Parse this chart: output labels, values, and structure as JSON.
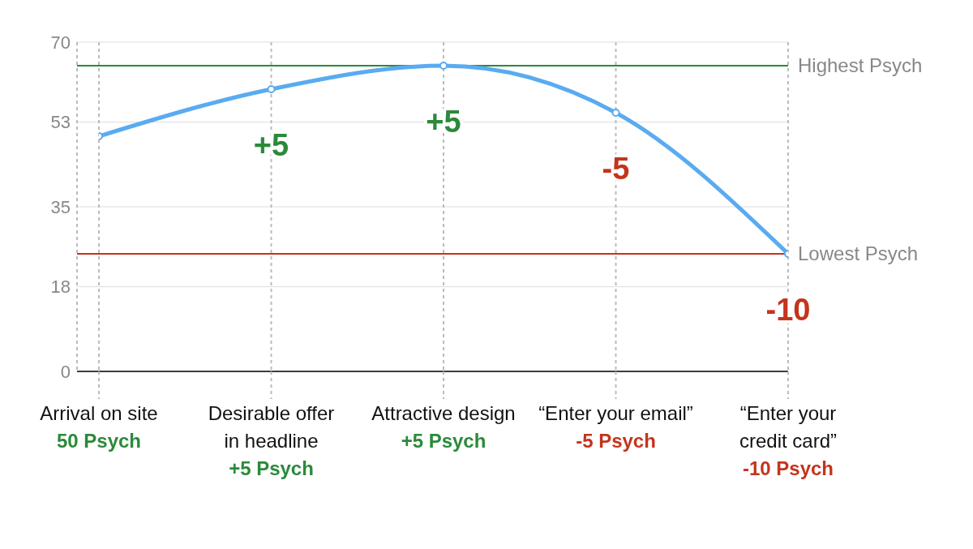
{
  "chart_data": {
    "type": "line",
    "categories": [
      "Arrival on site",
      "Desirable offer in headline",
      "Attractive design",
      "“Enter your email”",
      "“Enter your credit card”"
    ],
    "series": [
      {
        "color": "#5aabf0",
        "values": [
          50,
          60,
          65,
          55,
          25
        ]
      }
    ],
    "ylim": [
      0,
      70
    ],
    "yticks": [
      0,
      18,
      35,
      53,
      70
    ],
    "grid": true,
    "legend": false,
    "marker": "circle",
    "line_style": "solid",
    "ref_lines": [
      {
        "axis": "y",
        "value": 65,
        "label": "Highest Psych",
        "color": "#2a8a3a"
      },
      {
        "axis": "y",
        "value": 25,
        "label": "Lowest Psych",
        "color": "#c4341c"
      }
    ],
    "annotations": [
      {
        "text": "+5",
        "x": "Desirable offer in headline",
        "y": 60
      },
      {
        "text": "+5",
        "x": "Attractive design",
        "y": 65
      },
      {
        "text": "-5",
        "x": "“Enter your email”",
        "y": 55
      },
      {
        "text": "-10",
        "x": "“Enter your credit card”",
        "y": 25
      },
      "50 Psych",
      "+5 Psych",
      "+5 Psych",
      "-5 Psych",
      "-10 Psych"
    ]
  }
}
